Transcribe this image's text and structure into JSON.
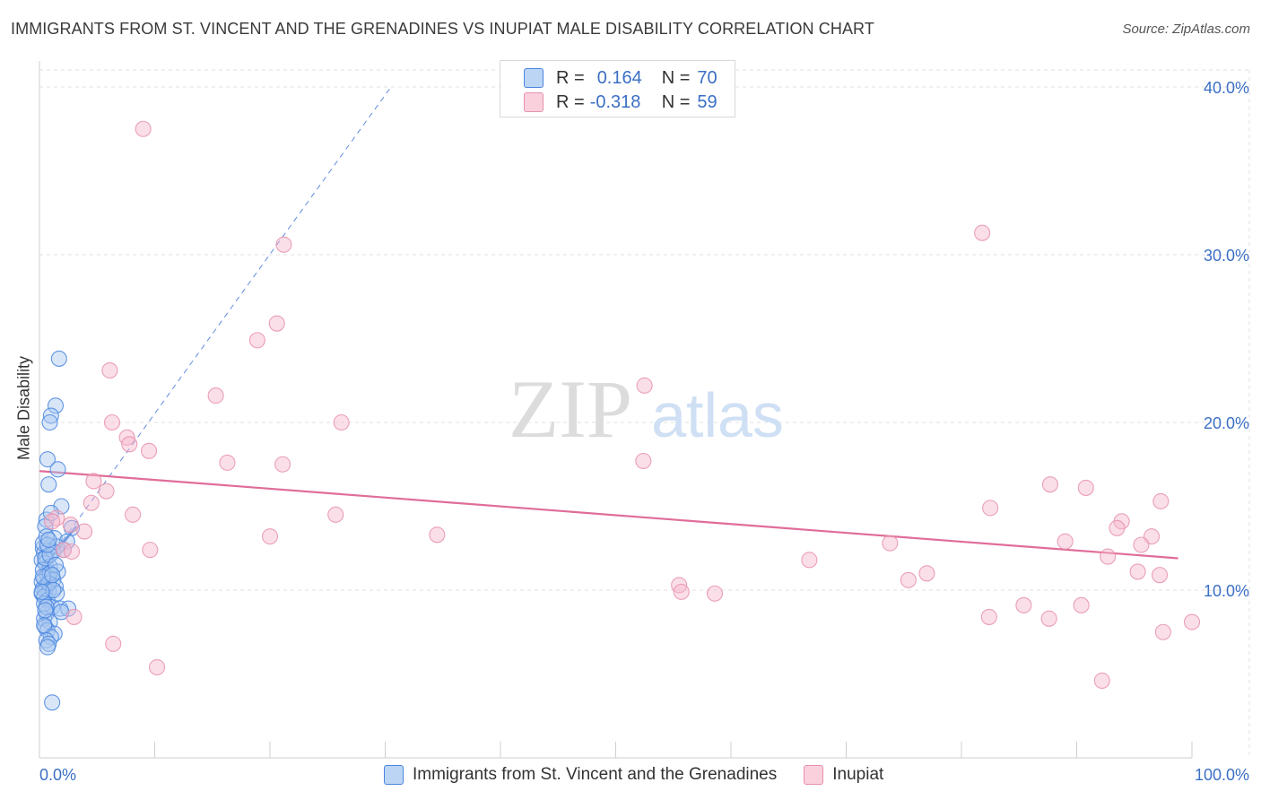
{
  "title": "IMMIGRANTS FROM ST. VINCENT AND THE GRENADINES VS INUPIAT MALE DISABILITY CORRELATION CHART",
  "source": "Source: ZipAtlas.com",
  "watermark": {
    "zip": "ZIP",
    "atlas": "atlas"
  },
  "legend_top": {
    "rows": [
      {
        "r_label": "R =",
        "r_value": "0.164",
        "n_label": "N =",
        "n_value": "70"
      },
      {
        "r_label": "R =",
        "r_value": "-0.318",
        "n_label": "N =",
        "n_value": "59"
      }
    ]
  },
  "legend_bottom": {
    "items": [
      {
        "label": "Immigrants from St. Vincent and the Grenadines"
      },
      {
        "label": "Inupiat"
      }
    ]
  },
  "colors": {
    "blue_fill": "#a9c8f0",
    "blue_stroke": "#4a86e0",
    "blue_line": "#3a6fd8",
    "pink_fill": "#f7b8cc",
    "pink_stroke": "#e690ad",
    "pink_line": "#e06d99",
    "tick_label": "#3b6fc4",
    "grid": "#e2e2e2"
  },
  "chart_data": {
    "type": "scatter",
    "title": "IMMIGRANTS FROM ST. VINCENT AND THE GRENADINES VS INUPIAT MALE DISABILITY CORRELATION CHART",
    "xlabel": "",
    "ylabel": "Male Disability",
    "xlim": [
      0,
      100
    ],
    "ylim": [
      0,
      40
    ],
    "x_tick_labels": [
      "0.0%",
      "100.0%"
    ],
    "y_ticks": [
      10,
      20,
      30,
      40
    ],
    "y_tick_labels": [
      "10.0%",
      "20.0%",
      "30.0%",
      "40.0%"
    ],
    "series": [
      {
        "name": "Immigrants from St. Vincent and the Grenadines",
        "color": "blue",
        "r": 0.164,
        "n": 70,
        "trend": {
          "x": [
            0.5,
            3.2
          ],
          "y": [
            11.5,
            13.8
          ]
        },
        "trend_extension": {
          "x": [
            0.5,
            30.5
          ],
          "y": [
            11.5,
            40.0
          ]
        },
        "points": [
          [
            1.7,
            23.8
          ],
          [
            1.4,
            21.0
          ],
          [
            1.0,
            20.4
          ],
          [
            0.9,
            20.0
          ],
          [
            0.7,
            17.8
          ],
          [
            1.6,
            17.2
          ],
          [
            0.8,
            16.3
          ],
          [
            1.9,
            15.0
          ],
          [
            0.6,
            14.2
          ],
          [
            0.5,
            13.8
          ],
          [
            2.8,
            13.7
          ],
          [
            1.3,
            13.1
          ],
          [
            2.4,
            12.9
          ],
          [
            1.5,
            12.6
          ],
          [
            0.3,
            12.5
          ],
          [
            0.4,
            12.2
          ],
          [
            0.6,
            12.0
          ],
          [
            1.2,
            12.3
          ],
          [
            0.2,
            11.8
          ],
          [
            0.5,
            11.6
          ],
          [
            0.9,
            11.4
          ],
          [
            0.3,
            11.2
          ],
          [
            1.6,
            11.1
          ],
          [
            0.7,
            10.9
          ],
          [
            0.4,
            10.7
          ],
          [
            1.2,
            10.6
          ],
          [
            0.2,
            10.5
          ],
          [
            0.6,
            10.3
          ],
          [
            1.4,
            10.2
          ],
          [
            0.3,
            10.1
          ],
          [
            0.5,
            10.0
          ],
          [
            0.8,
            9.9
          ],
          [
            0.2,
            9.8
          ],
          [
            0.4,
            9.6
          ],
          [
            0.7,
            9.4
          ],
          [
            1.1,
            9.0
          ],
          [
            1.8,
            8.9
          ],
          [
            2.5,
            8.9
          ],
          [
            0.6,
            8.6
          ],
          [
            0.4,
            8.3
          ],
          [
            0.9,
            8.1
          ],
          [
            0.5,
            7.8
          ],
          [
            0.7,
            7.6
          ],
          [
            1.3,
            7.4
          ],
          [
            1.0,
            7.2
          ],
          [
            0.6,
            7.0
          ],
          [
            0.8,
            6.8
          ],
          [
            0.7,
            6.6
          ],
          [
            1.1,
            3.3
          ],
          [
            0.3,
            12.8
          ],
          [
            0.9,
            11.0
          ],
          [
            1.5,
            9.8
          ],
          [
            0.4,
            9.2
          ],
          [
            2.1,
            12.4
          ],
          [
            0.6,
            13.2
          ],
          [
            1.0,
            14.6
          ],
          [
            0.8,
            10.4
          ],
          [
            0.3,
            10.8
          ],
          [
            1.9,
            8.7
          ],
          [
            0.5,
            11.9
          ],
          [
            1.2,
            10.0
          ],
          [
            0.9,
            12.1
          ],
          [
            0.4,
            7.9
          ],
          [
            0.6,
            9.0
          ],
          [
            1.4,
            11.5
          ],
          [
            0.7,
            12.7
          ],
          [
            0.2,
            9.9
          ],
          [
            0.8,
            13.0
          ],
          [
            1.1,
            10.9
          ],
          [
            0.5,
            8.8
          ]
        ]
      },
      {
        "name": "Inupiat",
        "color": "pink",
        "r": -0.318,
        "n": 59,
        "trend": {
          "x": [
            0,
            98.8
          ],
          "y": [
            17.1,
            11.9
          ]
        },
        "points": [
          [
            9.0,
            37.5
          ],
          [
            21.2,
            30.6
          ],
          [
            20.6,
            25.9
          ],
          [
            18.9,
            24.9
          ],
          [
            6.1,
            23.1
          ],
          [
            15.3,
            21.6
          ],
          [
            6.3,
            20.0
          ],
          [
            26.2,
            20.0
          ],
          [
            7.6,
            19.1
          ],
          [
            7.8,
            18.7
          ],
          [
            16.3,
            17.6
          ],
          [
            21.1,
            17.5
          ],
          [
            4.7,
            16.5
          ],
          [
            4.5,
            15.2
          ],
          [
            8.1,
            14.5
          ],
          [
            25.7,
            14.5
          ],
          [
            1.5,
            14.3
          ],
          [
            1.1,
            14.1
          ],
          [
            2.7,
            13.9
          ],
          [
            3.9,
            13.5
          ],
          [
            20.0,
            13.2
          ],
          [
            34.5,
            13.3
          ],
          [
            2.1,
            12.4
          ],
          [
            2.8,
            12.3
          ],
          [
            9.6,
            12.4
          ],
          [
            52.4,
            17.7
          ],
          [
            52.5,
            22.2
          ],
          [
            81.8,
            31.3
          ],
          [
            87.7,
            16.3
          ],
          [
            90.8,
            16.1
          ],
          [
            97.3,
            15.3
          ],
          [
            82.5,
            14.9
          ],
          [
            93.9,
            14.1
          ],
          [
            93.5,
            13.7
          ],
          [
            96.5,
            13.2
          ],
          [
            89.0,
            12.9
          ],
          [
            95.6,
            12.7
          ],
          [
            92.7,
            12.0
          ],
          [
            73.8,
            12.8
          ],
          [
            66.8,
            11.8
          ],
          [
            95.3,
            11.1
          ],
          [
            97.2,
            10.9
          ],
          [
            75.4,
            10.6
          ],
          [
            77.0,
            11.0
          ],
          [
            55.5,
            10.3
          ],
          [
            55.7,
            9.9
          ],
          [
            58.6,
            9.8
          ],
          [
            85.4,
            9.1
          ],
          [
            90.4,
            9.1
          ],
          [
            82.4,
            8.4
          ],
          [
            87.6,
            8.3
          ],
          [
            3.0,
            8.4
          ],
          [
            6.4,
            6.8
          ],
          [
            10.2,
            5.4
          ],
          [
            97.5,
            7.5
          ],
          [
            100.0,
            8.1
          ],
          [
            92.2,
            4.6
          ],
          [
            9.5,
            18.3
          ],
          [
            5.8,
            15.9
          ]
        ]
      }
    ]
  }
}
